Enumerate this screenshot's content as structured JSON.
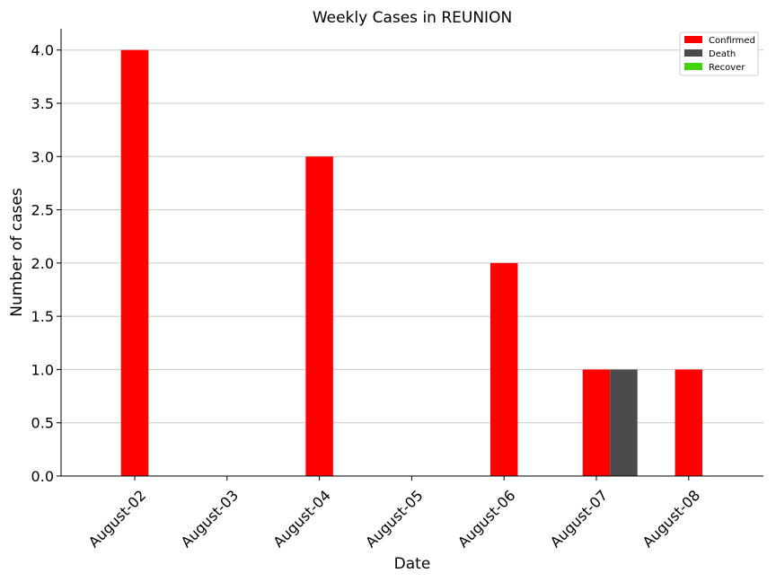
{
  "chart_data": {
    "type": "bar",
    "title": "Weekly Cases in REUNION",
    "xlabel": "Date",
    "ylabel": "Number of cases",
    "categories": [
      "August-02",
      "August-03",
      "August-04",
      "August-05",
      "August-06",
      "August-07",
      "August-08"
    ],
    "series": [
      {
        "name": "Confirmed",
        "color": "#ff0000",
        "values": [
          4,
          0,
          3,
          0,
          2,
          1,
          1
        ]
      },
      {
        "name": "Death",
        "color": "#4b4b4b",
        "values": [
          0,
          0,
          0,
          0,
          0,
          1,
          0
        ]
      },
      {
        "name": "Recover",
        "color": "#44d20c",
        "values": [
          0,
          0,
          0,
          0,
          0,
          0,
          0
        ]
      }
    ],
    "ylim": [
      0,
      4.2
    ],
    "yticks": [
      "0.0",
      "0.5",
      "1.0",
      "1.5",
      "2.0",
      "2.5",
      "3.0",
      "3.5",
      "4.0"
    ],
    "grid": "horizontal",
    "legend_position": "top-right"
  }
}
